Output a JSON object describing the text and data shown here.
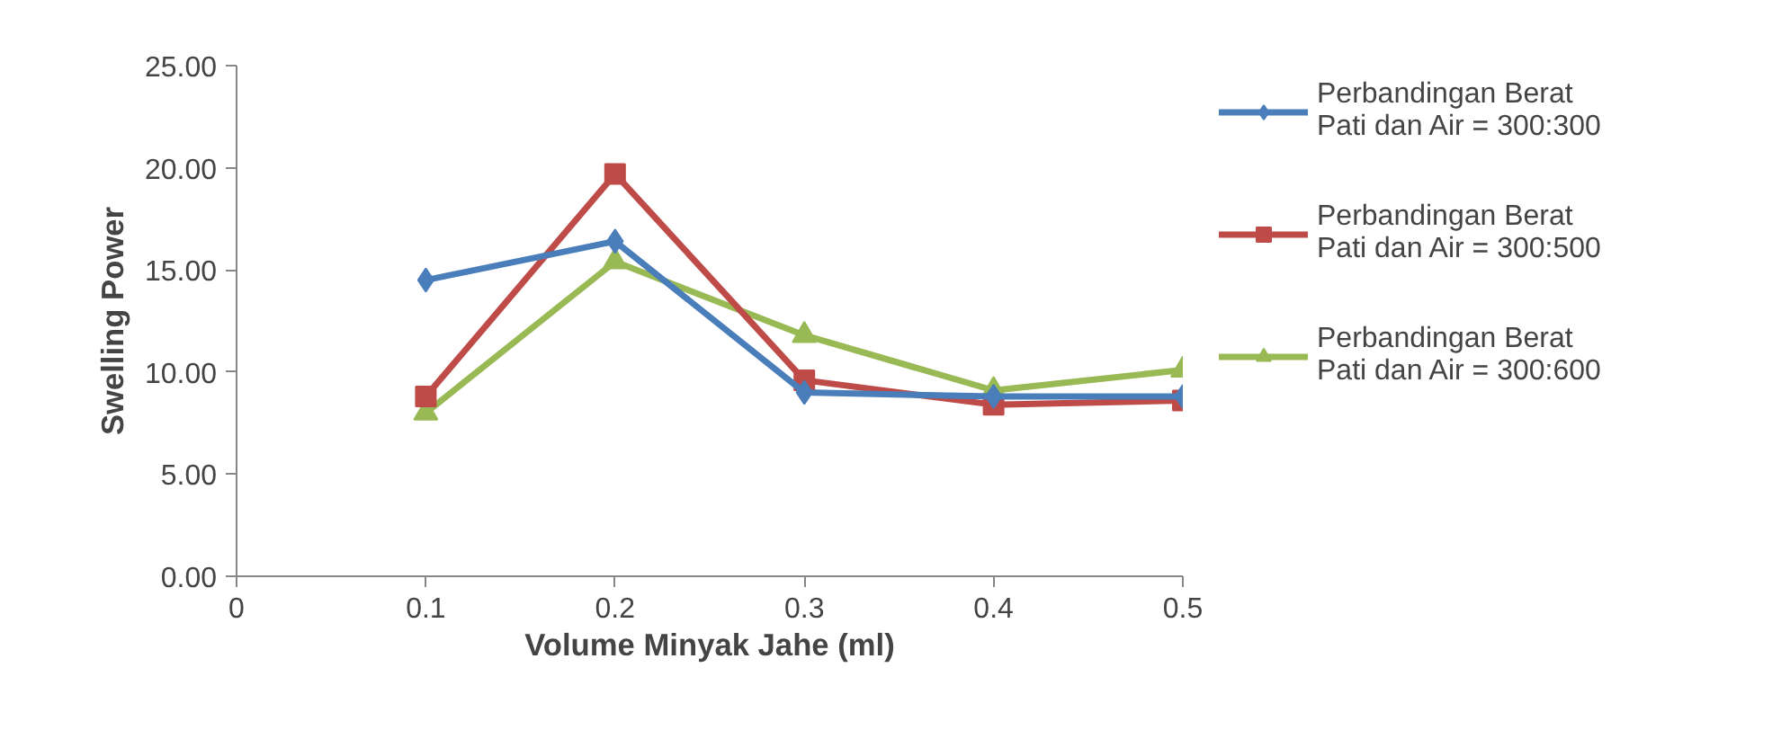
{
  "chart_data": {
    "type": "line",
    "xlabel": "Volume Minyak Jahe (ml)",
    "ylabel": "Swelling Power",
    "x": [
      0.1,
      0.2,
      0.3,
      0.4,
      0.5
    ],
    "series": [
      {
        "name": "Perbandingan Berat Pati dan Air = 300:300",
        "color": "#4a7ebb",
        "marker": "diamond",
        "values": [
          14.5,
          16.4,
          9.0,
          8.8,
          8.8
        ]
      },
      {
        "name": "Perbandingan Berat Pati dan Air = 300:500",
        "color": "#be4b48",
        "marker": "square",
        "values": [
          8.8,
          19.7,
          9.6,
          8.4,
          8.6
        ]
      },
      {
        "name": "Perbandingan Berat Pati dan Air = 300:600",
        "color": "#98b954",
        "marker": "triangle",
        "values": [
          8.0,
          15.4,
          11.8,
          9.1,
          10.1
        ]
      }
    ],
    "xlim": [
      0,
      0.5
    ],
    "xticks": [
      0,
      0.1,
      0.2,
      0.3,
      0.4,
      0.5
    ],
    "ylim": [
      0,
      25
    ],
    "yticks": [
      {
        "value": 0,
        "label": "0.00"
      },
      {
        "value": 5,
        "label": "5.00"
      },
      {
        "value": 10,
        "label": "10.00"
      },
      {
        "value": 15,
        "label": "15.00"
      },
      {
        "value": 20,
        "label": "20.00"
      },
      {
        "value": 25,
        "label": "25.00"
      }
    ],
    "grid": false,
    "legend": "right",
    "line_style": "solid"
  }
}
